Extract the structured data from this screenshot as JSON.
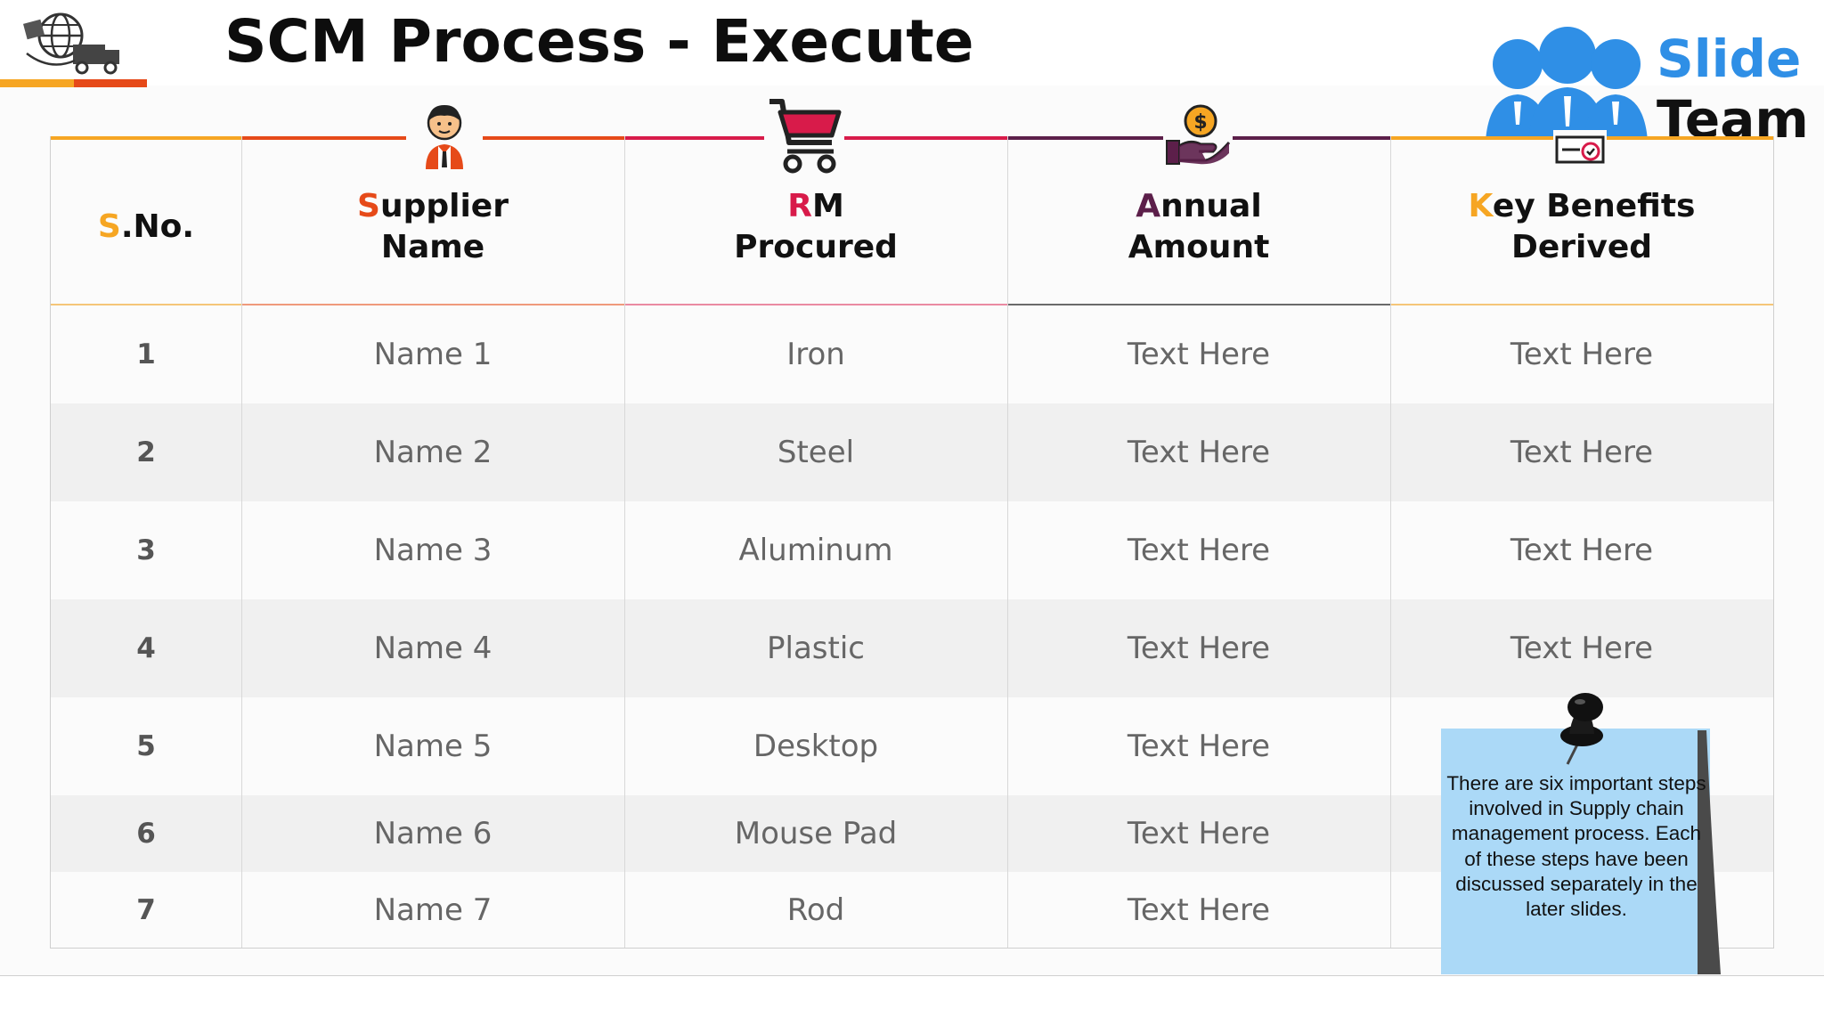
{
  "slide": {
    "title": "SCM Process - Execute"
  },
  "brand": {
    "line1": "Slide",
    "line2": "Team"
  },
  "table": {
    "headers": [
      {
        "first": "S",
        "rest": ".No.",
        "line2": "",
        "accent": "#f6a623",
        "icon": ""
      },
      {
        "first": "S",
        "rest": "upplier",
        "line2": "Name",
        "accent": "#e64a19",
        "icon": "person-icon"
      },
      {
        "first": "R",
        "rest": "M",
        "line2": "Procured",
        "accent": "#d81b4a",
        "icon": "shopping-cart-icon"
      },
      {
        "first": "A",
        "rest": "nnual",
        "line2": "Amount",
        "accent": "#5c1f4a",
        "icon": "hand-coin-icon"
      },
      {
        "first": "K",
        "rest": "ey Benefits",
        "line2": "Derived",
        "accent": "#f6a623",
        "icon": "certificate-icon"
      }
    ],
    "rows": [
      {
        "sno": "1",
        "name": "Name 1",
        "rm": "Iron",
        "amount": "Text Here",
        "benefits": "Text Here"
      },
      {
        "sno": "2",
        "name": "Name 2",
        "rm": "Steel",
        "amount": "Text Here",
        "benefits": "Text Here"
      },
      {
        "sno": "3",
        "name": "Name 3",
        "rm": "Aluminum",
        "amount": "Text Here",
        "benefits": "Text Here"
      },
      {
        "sno": "4",
        "name": "Name 4",
        "rm": "Plastic",
        "amount": "Text Here",
        "benefits": "Text Here"
      },
      {
        "sno": "5",
        "name": "Name 5",
        "rm": "Desktop",
        "amount": "Text Here",
        "benefits": ""
      },
      {
        "sno": "6",
        "name": "Name 6",
        "rm": "Mouse Pad",
        "amount": "Text Here",
        "benefits": ""
      },
      {
        "sno": "7",
        "name": "Name 7",
        "rm": "Rod",
        "amount": "Text Here",
        "benefits": ""
      }
    ]
  },
  "note": {
    "text": "There are six important steps involved in Supply chain management process. Each of these steps have been discussed separately in the later slides."
  },
  "colors": {
    "orange": "#f6a623",
    "red_orange": "#e64a19",
    "crimson": "#d81b4a",
    "plum": "#5c1f4a",
    "brand_blue": "#2f8fe6",
    "note_blue": "#abd9f7"
  }
}
